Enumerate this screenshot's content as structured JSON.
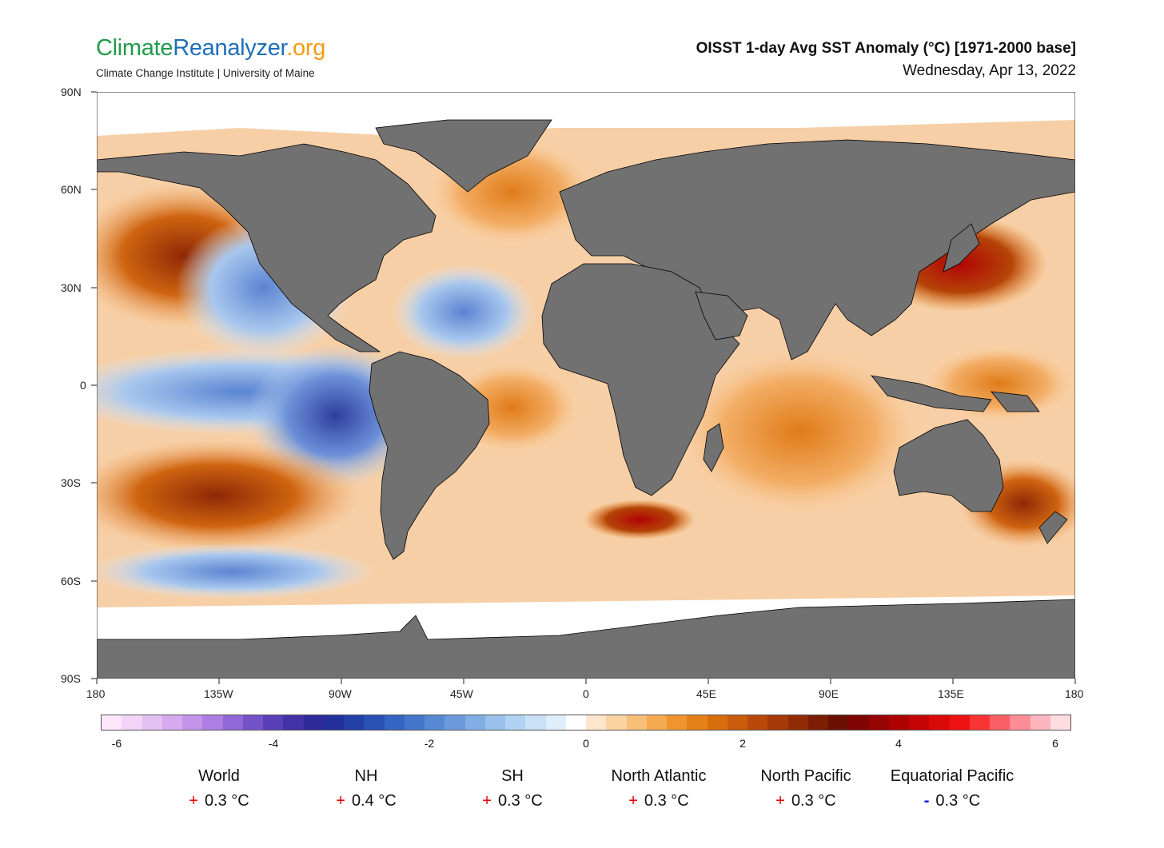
{
  "header": {
    "logo_parts": [
      "Climate",
      "Reanalyzer",
      ".org"
    ],
    "subtitle": "Climate Change Institute | University of Maine",
    "title": "OISST 1-day Avg SST Anomaly (°C) [1971-2000 base]",
    "date": "Wednesday, Apr 13, 2022"
  },
  "axes": {
    "lat_labels": [
      "90N",
      "60N",
      "30N",
      "0",
      "30S",
      "60S",
      "90S"
    ],
    "lon_labels": [
      "180",
      "135W",
      "90W",
      "45W",
      "0",
      "45E",
      "90E",
      "135E",
      "180"
    ]
  },
  "colorbar": {
    "ticks": [
      "-6",
      "-4",
      "-2",
      "0",
      "2",
      "4",
      "6"
    ],
    "colors": [
      "#fde6fa",
      "#f1d4f6",
      "#e4c0f2",
      "#d6aaf0",
      "#c493ea",
      "#ad7fe2",
      "#9168d6",
      "#7453c9",
      "#5a3fb9",
      "#4331a6",
      "#2f2b98",
      "#23319c",
      "#2340a8",
      "#2a52b6",
      "#3564c2",
      "#4477cc",
      "#5788d4",
      "#6b9adc",
      "#81aee4",
      "#99c1ec",
      "#b1d2f2",
      "#c9e1f7",
      "#e0eefb",
      "#ffffff",
      "#fde6cc",
      "#fbd3a3",
      "#f8bf79",
      "#f5aa52",
      "#ef952f",
      "#e58117",
      "#d86d0d",
      "#c95b0b",
      "#b8490a",
      "#a53908",
      "#902b06",
      "#7c1d04",
      "#6a1002",
      "#7f0404",
      "#970202",
      "#ae0202",
      "#c50505",
      "#db0a0a",
      "#ee1212",
      "#f83434",
      "#fb5f66",
      "#fc8c96",
      "#fdb6be",
      "#fedcdf"
    ]
  },
  "colors": {
    "land": "#717171",
    "ice": "#ffffff",
    "border": "#000000"
  },
  "stats": [
    {
      "name": "World",
      "sign": "+",
      "value": "0.3 °C"
    },
    {
      "name": "NH",
      "sign": "+",
      "value": "0.4 °C"
    },
    {
      "name": "SH",
      "sign": "+",
      "value": "0.3 °C"
    },
    {
      "name": "North Atlantic",
      "sign": "+",
      "value": "0.3 °C"
    },
    {
      "name": "North Pacific",
      "sign": "+",
      "value": "0.3 °C"
    },
    {
      "name": "Equatorial Pacific",
      "sign": "-",
      "value": "0.3 °C"
    }
  ]
}
